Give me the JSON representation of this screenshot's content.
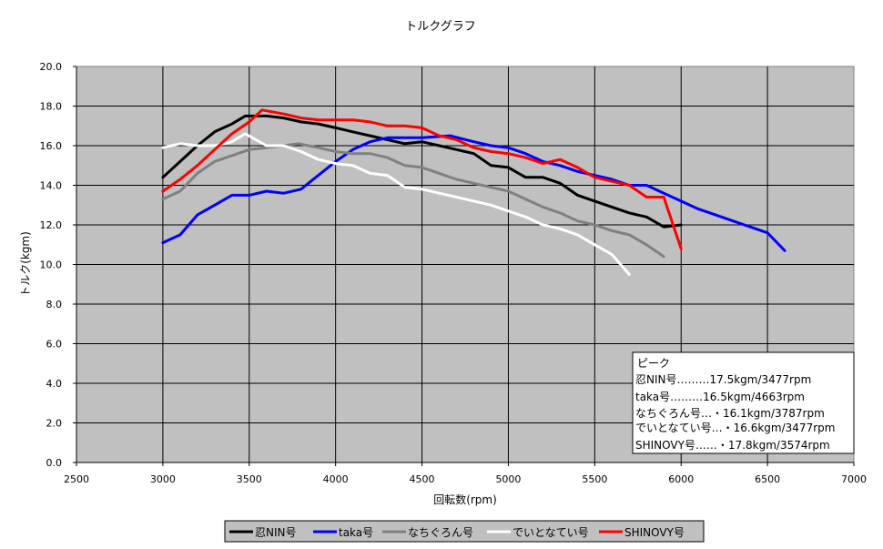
{
  "chart_data": {
    "type": "line",
    "title": "トルクグラフ",
    "xlabel": "回転数(rpm)",
    "ylabel": "トルク(kgm)",
    "xlim": [
      2500,
      7000
    ],
    "ylim": [
      0,
      20
    ],
    "xticks": [
      2500,
      3000,
      3500,
      4000,
      4500,
      5000,
      5500,
      6000,
      6500,
      7000
    ],
    "yticks": [
      "0.0",
      "2.0",
      "4.0",
      "6.0",
      "8.0",
      "10.0",
      "12.0",
      "14.0",
      "16.0",
      "18.0",
      "20.0"
    ],
    "grid": true,
    "background": "#c0c0c0",
    "legend_position": "bottom",
    "annotation": {
      "title": "ピーク",
      "lines": [
        "忍NIN号………17.5kgm/3477rpm",
        "taka号………16.5kgm/4663rpm",
        "なちぐろん号…・16.1kgm/3787rpm",
        "でいとなてい号…・16.6kgm/3477rpm",
        "SHINOVY号……・17.8kgm/3574rpm"
      ]
    },
    "series": [
      {
        "name": "忍NIN号",
        "color": "#000000",
        "points": [
          [
            3000,
            14.4
          ],
          [
            3100,
            15.2
          ],
          [
            3200,
            16.0
          ],
          [
            3300,
            16.7
          ],
          [
            3400,
            17.1
          ],
          [
            3477,
            17.5
          ],
          [
            3600,
            17.5
          ],
          [
            3700,
            17.4
          ],
          [
            3800,
            17.2
          ],
          [
            3900,
            17.1
          ],
          [
            4000,
            16.9
          ],
          [
            4100,
            16.7
          ],
          [
            4200,
            16.5
          ],
          [
            4300,
            16.3
          ],
          [
            4400,
            16.1
          ],
          [
            4500,
            16.2
          ],
          [
            4600,
            16.0
          ],
          [
            4700,
            15.8
          ],
          [
            4800,
            15.6
          ],
          [
            4900,
            15.0
          ],
          [
            5000,
            14.9
          ],
          [
            5100,
            14.4
          ],
          [
            5200,
            14.4
          ],
          [
            5300,
            14.1
          ],
          [
            5400,
            13.5
          ],
          [
            5500,
            13.2
          ],
          [
            5600,
            12.9
          ],
          [
            5700,
            12.6
          ],
          [
            5800,
            12.4
          ],
          [
            5900,
            11.9
          ],
          [
            6000,
            12.0
          ]
        ]
      },
      {
        "name": "taka号",
        "color": "#0000ff",
        "points": [
          [
            3000,
            11.1
          ],
          [
            3100,
            11.5
          ],
          [
            3200,
            12.5
          ],
          [
            3300,
            13.0
          ],
          [
            3400,
            13.5
          ],
          [
            3500,
            13.5
          ],
          [
            3600,
            13.7
          ],
          [
            3700,
            13.6
          ],
          [
            3800,
            13.8
          ],
          [
            3900,
            14.5
          ],
          [
            4000,
            15.2
          ],
          [
            4100,
            15.8
          ],
          [
            4200,
            16.2
          ],
          [
            4300,
            16.4
          ],
          [
            4400,
            16.4
          ],
          [
            4500,
            16.4
          ],
          [
            4663,
            16.5
          ],
          [
            4800,
            16.2
          ],
          [
            4900,
            16.0
          ],
          [
            5000,
            15.9
          ],
          [
            5100,
            15.6
          ],
          [
            5200,
            15.2
          ],
          [
            5300,
            15.0
          ],
          [
            5400,
            14.7
          ],
          [
            5500,
            14.5
          ],
          [
            5600,
            14.3
          ],
          [
            5700,
            14.0
          ],
          [
            5800,
            14.0
          ],
          [
            5900,
            13.6
          ],
          [
            6000,
            13.2
          ],
          [
            6100,
            12.8
          ],
          [
            6200,
            12.5
          ],
          [
            6300,
            12.2
          ],
          [
            6400,
            11.9
          ],
          [
            6500,
            11.6
          ],
          [
            6600,
            10.7
          ]
        ]
      },
      {
        "name": "なちぐろん号",
        "color": "#808080",
        "points": [
          [
            3000,
            13.3
          ],
          [
            3100,
            13.7
          ],
          [
            3200,
            14.6
          ],
          [
            3300,
            15.2
          ],
          [
            3400,
            15.5
          ],
          [
            3500,
            15.8
          ],
          [
            3600,
            15.9
          ],
          [
            3700,
            16.0
          ],
          [
            3787,
            16.1
          ],
          [
            3900,
            15.9
          ],
          [
            4000,
            15.7
          ],
          [
            4100,
            15.6
          ],
          [
            4200,
            15.6
          ],
          [
            4300,
            15.4
          ],
          [
            4400,
            15.0
          ],
          [
            4500,
            14.9
          ],
          [
            4600,
            14.6
          ],
          [
            4700,
            14.3
          ],
          [
            4800,
            14.1
          ],
          [
            4900,
            13.9
          ],
          [
            5000,
            13.7
          ],
          [
            5100,
            13.3
          ],
          [
            5200,
            12.9
          ],
          [
            5300,
            12.6
          ],
          [
            5400,
            12.2
          ],
          [
            5500,
            12.0
          ],
          [
            5600,
            11.7
          ],
          [
            5700,
            11.5
          ],
          [
            5800,
            11.0
          ],
          [
            5900,
            10.4
          ]
        ]
      },
      {
        "name": "でいとなてい号",
        "color": "#ffffff",
        "points": [
          [
            3000,
            15.9
          ],
          [
            3100,
            16.1
          ],
          [
            3200,
            16.0
          ],
          [
            3300,
            16.0
          ],
          [
            3400,
            16.2
          ],
          [
            3477,
            16.6
          ],
          [
            3600,
            16.0
          ],
          [
            3700,
            16.0
          ],
          [
            3800,
            15.7
          ],
          [
            3900,
            15.3
          ],
          [
            4000,
            15.1
          ],
          [
            4100,
            15.0
          ],
          [
            4200,
            14.6
          ],
          [
            4300,
            14.5
          ],
          [
            4400,
            13.9
          ],
          [
            4500,
            13.8
          ],
          [
            4600,
            13.6
          ],
          [
            4700,
            13.4
          ],
          [
            4800,
            13.2
          ],
          [
            4900,
            13.0
          ],
          [
            5000,
            12.7
          ],
          [
            5100,
            12.4
          ],
          [
            5200,
            12.0
          ],
          [
            5300,
            11.8
          ],
          [
            5400,
            11.5
          ],
          [
            5500,
            11.0
          ],
          [
            5600,
            10.5
          ],
          [
            5700,
            9.5
          ]
        ]
      },
      {
        "name": "SHINOVY号",
        "color": "#ff0000",
        "points": [
          [
            3000,
            13.7
          ],
          [
            3100,
            14.3
          ],
          [
            3200,
            15.0
          ],
          [
            3300,
            15.8
          ],
          [
            3400,
            16.6
          ],
          [
            3500,
            17.2
          ],
          [
            3574,
            17.8
          ],
          [
            3700,
            17.6
          ],
          [
            3800,
            17.4
          ],
          [
            3900,
            17.3
          ],
          [
            4000,
            17.3
          ],
          [
            4100,
            17.3
          ],
          [
            4200,
            17.2
          ],
          [
            4300,
            17.0
          ],
          [
            4400,
            17.0
          ],
          [
            4500,
            16.9
          ],
          [
            4600,
            16.5
          ],
          [
            4700,
            16.3
          ],
          [
            4800,
            15.9
          ],
          [
            4900,
            15.7
          ],
          [
            5000,
            15.6
          ],
          [
            5100,
            15.4
          ],
          [
            5200,
            15.1
          ],
          [
            5300,
            15.3
          ],
          [
            5400,
            14.9
          ],
          [
            5500,
            14.4
          ],
          [
            5600,
            14.2
          ],
          [
            5700,
            14.0
          ],
          [
            5800,
            13.4
          ],
          [
            5900,
            13.4
          ],
          [
            6000,
            10.8
          ]
        ]
      }
    ]
  }
}
